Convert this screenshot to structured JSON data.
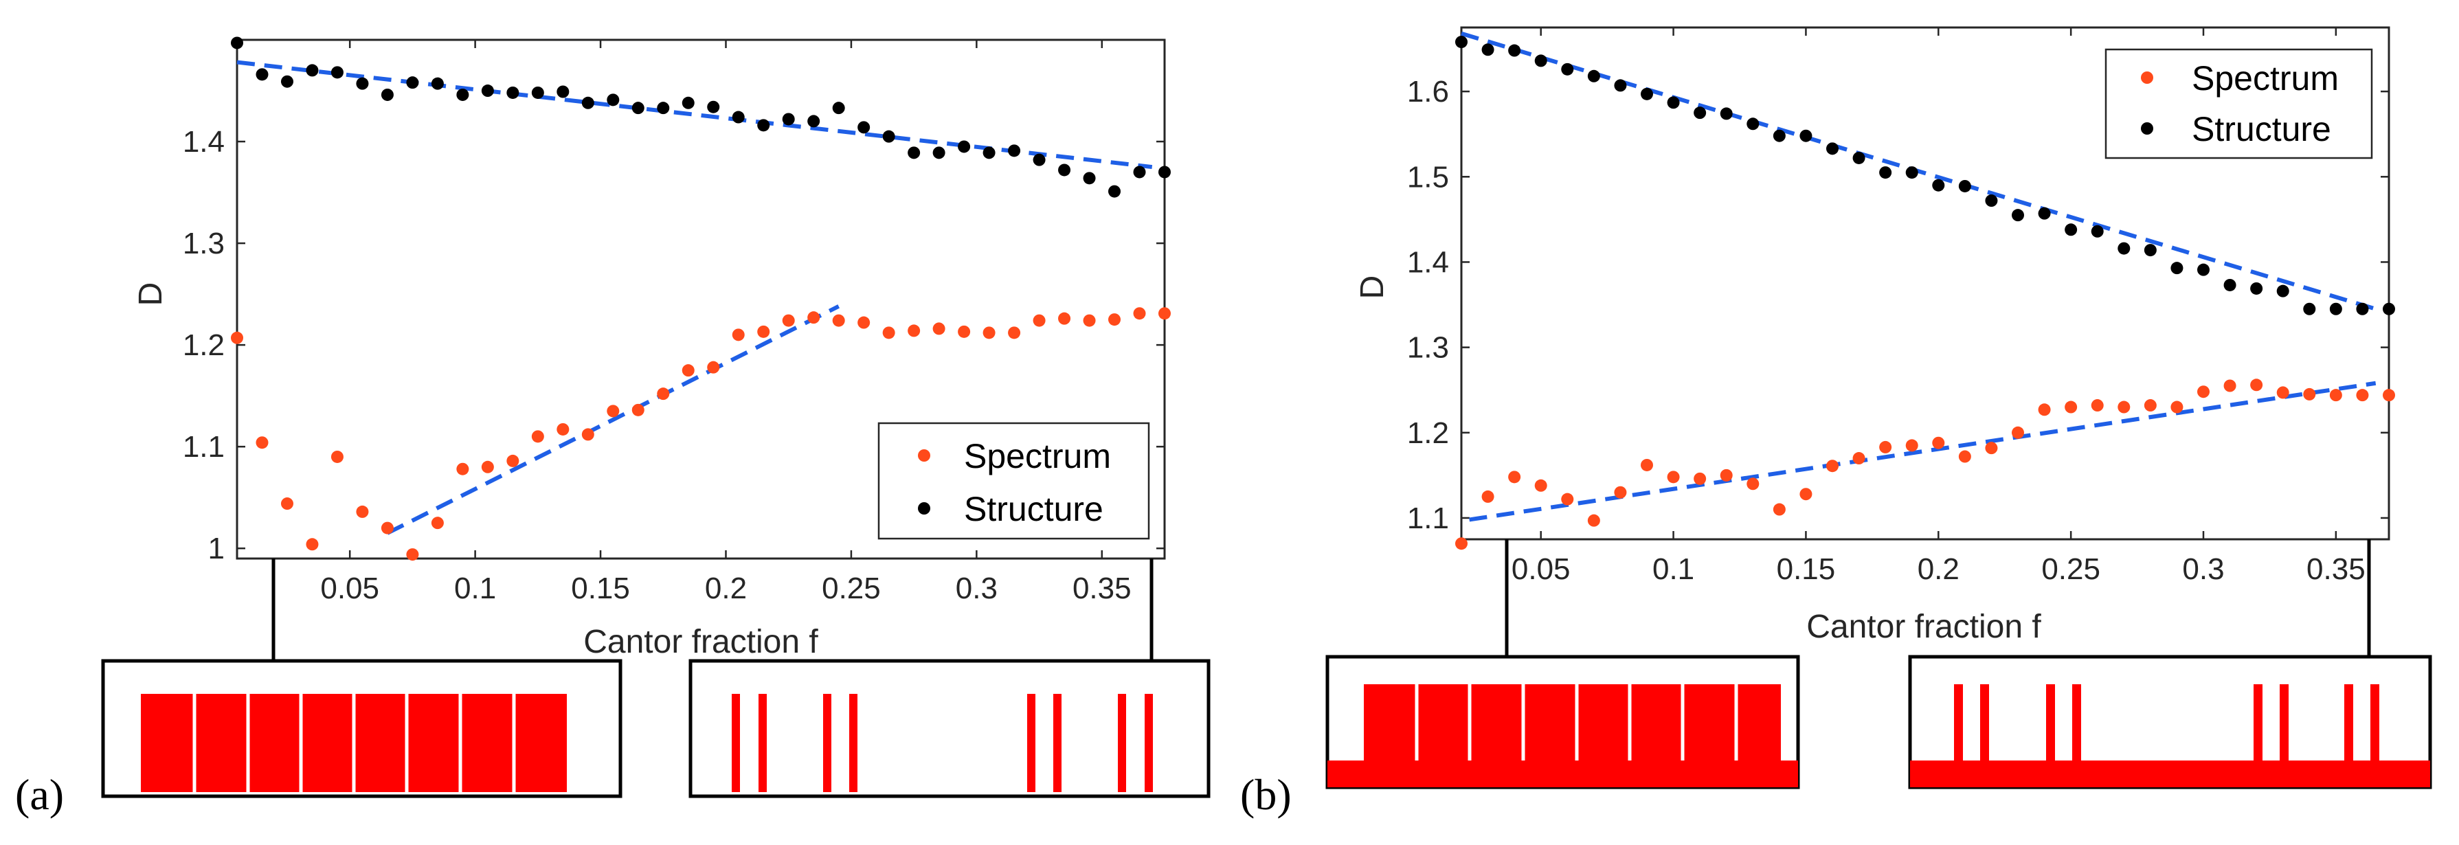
{
  "colors": {
    "spectrum": "#FF4A1A",
    "structure": "#000000",
    "fit": "#1F5FE6",
    "cantor": "#FF0000"
  },
  "chart_data": [
    {
      "type": "scatter",
      "panel_label": "(a)",
      "xlabel": "Cantor fraction f",
      "ylabel": "D",
      "xlim": [
        0.005,
        0.375
      ],
      "ylim": [
        0.99,
        1.5
      ],
      "xticks": [
        0.05,
        0.1,
        0.15,
        0.2,
        0.25,
        0.3,
        0.35
      ],
      "xtick_labels": [
        "0.05",
        "0.1",
        "0.15",
        "0.2",
        "0.25",
        "0.3",
        "0.35"
      ],
      "yticks": [
        1.0,
        1.1,
        1.2,
        1.3,
        1.4
      ],
      "ytick_labels": [
        "1",
        "1.1",
        "1.2",
        "1.3",
        "1.4"
      ],
      "legend_position": "bottom-right",
      "grid": false,
      "series": [
        {
          "name": "Spectrum",
          "x": [
            0.005,
            0.015,
            0.025,
            0.035,
            0.045,
            0.055,
            0.065,
            0.075,
            0.085,
            0.095,
            0.105,
            0.115,
            0.125,
            0.135,
            0.145,
            0.155,
            0.165,
            0.175,
            0.185,
            0.195,
            0.205,
            0.215,
            0.225,
            0.235,
            0.245,
            0.255,
            0.265,
            0.275,
            0.285,
            0.295,
            0.305,
            0.315,
            0.325,
            0.335,
            0.345,
            0.355,
            0.365,
            0.375
          ],
          "y": [
            1.207,
            1.104,
            1.044,
            1.004,
            1.09,
            1.036,
            1.02,
            0.994,
            1.025,
            1.078,
            1.08,
            1.086,
            1.11,
            1.117,
            1.112,
            1.135,
            1.136,
            1.152,
            1.175,
            1.178,
            1.21,
            1.213,
            1.224,
            1.227,
            1.224,
            1.222,
            1.212,
            1.214,
            1.216,
            1.213,
            1.212,
            1.212,
            1.224,
            1.226,
            1.224,
            1.225,
            1.231,
            1.231
          ]
        },
        {
          "name": "Structure",
          "x": [
            0.005,
            0.015,
            0.025,
            0.035,
            0.045,
            0.055,
            0.065,
            0.075,
            0.085,
            0.095,
            0.105,
            0.115,
            0.125,
            0.135,
            0.145,
            0.155,
            0.165,
            0.175,
            0.185,
            0.195,
            0.205,
            0.215,
            0.225,
            0.235,
            0.245,
            0.255,
            0.265,
            0.275,
            0.285,
            0.295,
            0.305,
            0.315,
            0.325,
            0.335,
            0.345,
            0.355,
            0.365,
            0.375
          ],
          "y": [
            1.497,
            1.466,
            1.459,
            1.47,
            1.468,
            1.457,
            1.446,
            1.458,
            1.457,
            1.446,
            1.45,
            1.448,
            1.448,
            1.449,
            1.438,
            1.441,
            1.433,
            1.433,
            1.438,
            1.434,
            1.424,
            1.416,
            1.422,
            1.42,
            1.433,
            1.414,
            1.405,
            1.389,
            1.389,
            1.395,
            1.389,
            1.391,
            1.382,
            1.372,
            1.364,
            1.351,
            1.37,
            1.37
          ]
        }
      ],
      "fits": [
        {
          "x": [
            0.005,
            0.37
          ],
          "y": [
            1.478,
            1.375
          ]
        },
        {
          "x": [
            0.065,
            0.245
          ],
          "y": [
            1.015,
            1.238
          ]
        }
      ]
    },
    {
      "type": "scatter",
      "panel_label": "(b)",
      "xlabel": "Cantor fraction f",
      "ylabel": "D",
      "xlim": [
        0.02,
        0.37
      ],
      "ylim": [
        1.075,
        1.675
      ],
      "xticks": [
        0.05,
        0.1,
        0.15,
        0.2,
        0.25,
        0.3,
        0.35
      ],
      "xtick_labels": [
        "0.05",
        "0.1",
        "0.15",
        "0.2",
        "0.25",
        "0.3",
        "0.35"
      ],
      "yticks": [
        1.1,
        1.2,
        1.3,
        1.4,
        1.5,
        1.6
      ],
      "ytick_labels": [
        "1.1",
        "1.2",
        "1.3",
        "1.4",
        "1.5",
        "1.6"
      ],
      "legend_position": "top-right",
      "grid": false,
      "series": [
        {
          "name": "Spectrum",
          "x": [
            0.02,
            0.03,
            0.04,
            0.05,
            0.06,
            0.07,
            0.08,
            0.09,
            0.1,
            0.11,
            0.12,
            0.13,
            0.14,
            0.15,
            0.16,
            0.17,
            0.18,
            0.19,
            0.2,
            0.21,
            0.22,
            0.23,
            0.24,
            0.25,
            0.26,
            0.27,
            0.28,
            0.29,
            0.3,
            0.31,
            0.32,
            0.33,
            0.34,
            0.35,
            0.36,
            0.37
          ],
          "y": [
            1.07,
            1.125,
            1.148,
            1.138,
            1.122,
            1.097,
            1.13,
            1.162,
            1.148,
            1.146,
            1.15,
            1.14,
            1.11,
            1.128,
            1.161,
            1.17,
            1.183,
            1.185,
            1.188,
            1.172,
            1.182,
            1.2,
            1.227,
            1.23,
            1.232,
            1.23,
            1.232,
            1.23,
            1.248,
            1.255,
            1.256,
            1.247,
            1.245,
            1.244,
            1.244,
            1.244
          ]
        },
        {
          "name": "Structure",
          "x": [
            0.02,
            0.03,
            0.04,
            0.05,
            0.06,
            0.07,
            0.08,
            0.09,
            0.1,
            0.11,
            0.12,
            0.13,
            0.14,
            0.15,
            0.16,
            0.17,
            0.18,
            0.19,
            0.2,
            0.21,
            0.22,
            0.23,
            0.24,
            0.25,
            0.26,
            0.27,
            0.28,
            0.29,
            0.3,
            0.31,
            0.32,
            0.33,
            0.34,
            0.35,
            0.36,
            0.37
          ],
          "y": [
            1.658,
            1.649,
            1.648,
            1.636,
            1.626,
            1.618,
            1.607,
            1.597,
            1.587,
            1.575,
            1.574,
            1.562,
            1.548,
            1.548,
            1.533,
            1.522,
            1.505,
            1.505,
            1.49,
            1.489,
            1.472,
            1.455,
            1.457,
            1.438,
            1.436,
            1.416,
            1.414,
            1.393,
            1.391,
            1.373,
            1.369,
            1.366,
            1.345,
            1.345,
            1.345,
            1.345
          ]
        }
      ],
      "fits": [
        {
          "x": [
            0.02,
            0.365
          ],
          "y": [
            1.668,
            1.345
          ]
        },
        {
          "x": [
            0.023,
            0.365
          ],
          "y": [
            1.098,
            1.258
          ]
        }
      ]
    }
  ],
  "legends": [
    {
      "items": [
        {
          "label": "Spectrum"
        },
        {
          "label": "Structure"
        }
      ]
    },
    {
      "items": [
        {
          "label": "Spectrum"
        },
        {
          "label": "Structure"
        }
      ]
    }
  ]
}
